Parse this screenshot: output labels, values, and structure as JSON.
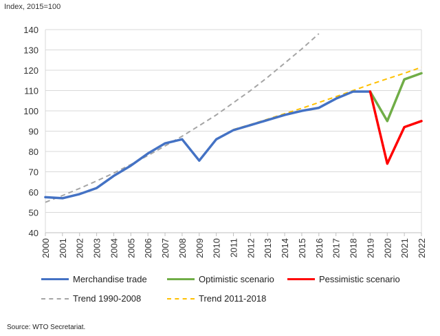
{
  "unit_label": "Index, 2015=100",
  "source": "Source:   WTO Secretariat.",
  "colors": {
    "merchandise": "#4472c4",
    "optimistic": "#70ad47",
    "pessimistic": "#ff0000",
    "trend_1990": "#a5a5a5",
    "trend_2011": "#ffc000",
    "grid": "#d9d9d9"
  },
  "chart_data": {
    "type": "line",
    "title": "",
    "ylabel": "Index, 2015=100",
    "xlabel": "",
    "ylim": [
      40,
      140
    ],
    "yticks": [
      40,
      50,
      60,
      70,
      80,
      90,
      100,
      110,
      120,
      130,
      140
    ],
    "xlim": [
      2000,
      2022
    ],
    "xticks": [
      2000,
      2001,
      2002,
      2003,
      2004,
      2005,
      2006,
      2007,
      2008,
      2009,
      2010,
      2011,
      2012,
      2013,
      2014,
      2015,
      2016,
      2017,
      2018,
      2019,
      2020,
      2021,
      2022
    ],
    "grid": "horizontal",
    "legend_placement": "bottom",
    "series": [
      {
        "name": "Merchandise trade",
        "style": "solid",
        "color_key": "merchandise",
        "x": [
          2000,
          2001,
          2002,
          2003,
          2004,
          2005,
          2006,
          2007,
          2008,
          2009,
          2010,
          2011,
          2012,
          2013,
          2014,
          2015,
          2016,
          2017,
          2018,
          2019
        ],
        "y": [
          57.5,
          57.0,
          59.0,
          62.0,
          68.0,
          73.0,
          79.0,
          84.0,
          86.0,
          75.5,
          86.0,
          90.5,
          93.0,
          95.5,
          98.0,
          100.0,
          101.5,
          106.0,
          109.5,
          109.5
        ]
      },
      {
        "name": "Optimistic scenario",
        "style": "solid",
        "color_key": "optimistic",
        "x": [
          2019,
          2020,
          2021,
          2022
        ],
        "y": [
          109.5,
          95.0,
          115.5,
          118.5
        ]
      },
      {
        "name": "Pessimistic scenario",
        "style": "solid",
        "color_key": "pessimistic",
        "x": [
          2019,
          2020,
          2021,
          2022
        ],
        "y": [
          109.5,
          74.0,
          92.0,
          95.0
        ]
      },
      {
        "name": "Trend 1990-2008",
        "style": "dashed",
        "color_key": "trend_1990",
        "x": [
          2000,
          2001,
          2002,
          2003,
          2004,
          2005,
          2006,
          2007,
          2008,
          2009,
          2010,
          2011,
          2012,
          2013,
          2014,
          2015,
          2016
        ],
        "y": [
          55.0,
          58.3,
          61.8,
          65.5,
          69.4,
          73.6,
          78.0,
          82.7,
          87.5,
          92.7,
          98.0,
          104.0,
          110.0,
          116.5,
          123.5,
          130.5,
          138.0
        ]
      },
      {
        "name": "Trend 2011-2018",
        "style": "dashed",
        "color_key": "trend_2011",
        "x": [
          2011,
          2012,
          2013,
          2014,
          2015,
          2016,
          2017,
          2018,
          2019,
          2020,
          2021,
          2022
        ],
        "y": [
          90.8,
          93.3,
          95.9,
          98.6,
          101.3,
          104.1,
          107.0,
          110.0,
          113.0,
          115.8,
          118.5,
          121.5
        ]
      }
    ]
  }
}
